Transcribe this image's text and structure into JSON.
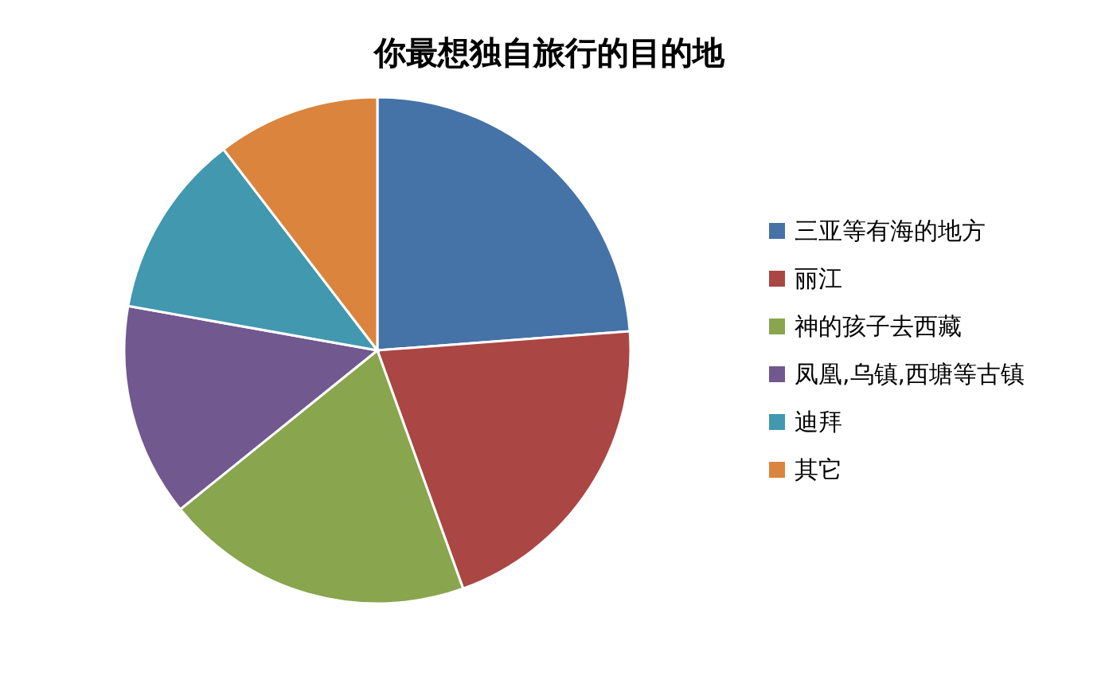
{
  "chart_data": {
    "type": "pie",
    "title": "你最想独自旅行的目的地",
    "categories": [
      "三亚等有海的地方",
      "丽江",
      "神的孩子去西藏",
      "凤凰,乌镇,西塘等古镇",
      "迪拜",
      "其它"
    ],
    "values": [
      23.8,
      20.7,
      19.7,
      13.6,
      11.8,
      10.4
    ],
    "colors": [
      "#4572a7",
      "#aa4643",
      "#89a54e",
      "#71588f",
      "#4198af",
      "#db843d"
    ],
    "legend": "right"
  }
}
